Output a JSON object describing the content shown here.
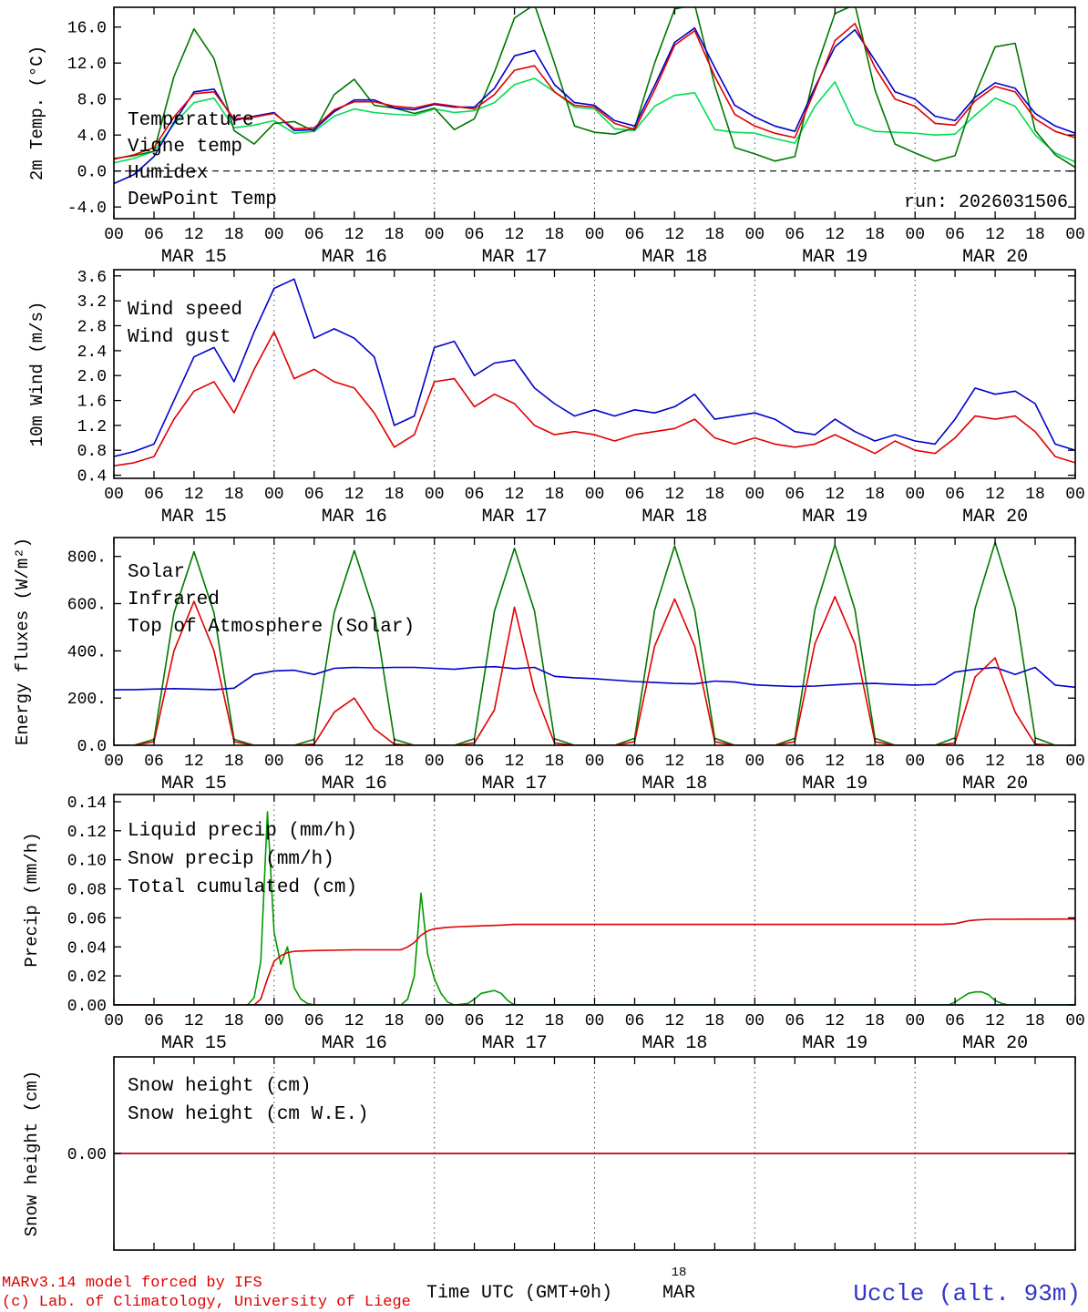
{
  "run_label": "run: 2026031506",
  "x_axis": {
    "total_hours": 144,
    "major_tick_hours": 6,
    "hour_label_cycle": [
      "00",
      "06",
      "12",
      "18"
    ],
    "day_labels": [
      "MAR 15",
      "MAR 16",
      "MAR 17",
      "MAR 18",
      "MAR 19",
      "MAR 20"
    ],
    "day_boundary_hours": [
      24,
      48,
      72,
      96,
      120
    ]
  },
  "footer": {
    "credit_line1": "MARv3.14 model forced by IFS",
    "credit_line2": "(c) Lab. of Climatology, University of Liege",
    "axis_title": "Time UTC (GMT+0h)",
    "axis_day": "18",
    "axis_month": "MAR",
    "station": "Uccle (alt. 93m)"
  },
  "colors": {
    "red": "#e00000",
    "blue": "#0000cc",
    "green_dark": "#007700",
    "green_mid": "#009900",
    "green_bright": "#00dd55",
    "axis": "#000000"
  },
  "chart_data": [
    {
      "id": "temperature",
      "type": "line",
      "ylabel": "2m Temp. (°C)",
      "ylim": [
        -5.3,
        18.2
      ],
      "zero_line": 0,
      "yticks": [
        {
          "v": -4,
          "label": "-4.0"
        },
        {
          "v": 0,
          "label": "0.0"
        },
        {
          "v": 4,
          "label": "4.0"
        },
        {
          "v": 8,
          "label": "8.0"
        },
        {
          "v": 12,
          "label": "12.0"
        },
        {
          "v": 16,
          "label": "16.0"
        }
      ],
      "legend": [
        {
          "label": "Temperature",
          "color": "#e00000"
        },
        {
          "label": "Vigne temp",
          "color": "#007700"
        },
        {
          "label": "Humidex",
          "color": "#0000cc"
        },
        {
          "label": "DewPoint Temp",
          "color": "#00dd55"
        }
      ],
      "series": [
        {
          "name": "DewPoint Temp",
          "color": "#00dd55",
          "step": 3,
          "values": [
            0.9,
            1.4,
            2.2,
            5.2,
            7.6,
            8.1,
            4.8,
            5.1,
            5.6,
            4.2,
            4.4,
            6.1,
            6.9,
            6.5,
            6.3,
            6.2,
            6.9,
            6.5,
            6.7,
            7.6,
            9.6,
            10.3,
            8.8,
            7.1,
            6.9,
            4.7,
            4.5,
            7.2,
            8.4,
            8.7,
            4.6,
            4.3,
            4.2,
            3.6,
            3.1,
            7.2,
            9.9,
            5.2,
            4.4,
            4.3,
            4.2,
            4.0,
            4.1,
            6.2,
            8.1,
            7.2,
            4.0,
            2.0,
            1.0
          ]
        },
        {
          "name": "Vigne temp",
          "color": "#007700",
          "step": 3,
          "values": [
            1.4,
            1.7,
            2.2,
            10.5,
            15.8,
            12.5,
            4.5,
            3.0,
            5.3,
            5.5,
            4.4,
            8.5,
            10.2,
            7.3,
            7.0,
            6.4,
            7.0,
            4.6,
            5.8,
            11.0,
            17.0,
            18.5,
            12.0,
            5.0,
            4.3,
            4.1,
            4.8,
            12.0,
            18.0,
            18.5,
            9.5,
            2.6,
            1.9,
            1.1,
            1.6,
            11.0,
            17.5,
            18.5,
            9.0,
            3.0,
            2.0,
            1.1,
            1.7,
            8.5,
            13.8,
            14.2,
            4.5,
            1.8,
            0.4
          ]
        },
        {
          "name": "Humidex",
          "color": "#0000cc",
          "step": 3,
          "values": [
            -1.4,
            -0.4,
            1.6,
            5.4,
            8.8,
            9.1,
            5.6,
            6.1,
            6.5,
            4.5,
            4.6,
            6.6,
            7.9,
            7.9,
            7.0,
            6.8,
            7.4,
            7.1,
            7.1,
            9.2,
            12.8,
            13.4,
            9.6,
            7.6,
            7.3,
            5.6,
            5.0,
            9.5,
            14.3,
            15.9,
            11.5,
            7.3,
            6.0,
            5.0,
            4.4,
            9.3,
            13.8,
            15.7,
            12.3,
            8.8,
            8.0,
            6.1,
            5.6,
            8.2,
            9.8,
            9.2,
            6.4,
            5.0,
            4.2
          ]
        },
        {
          "name": "Temperature",
          "color": "#e00000",
          "step": 3,
          "values": [
            1.3,
            1.8,
            2.6,
            6.0,
            8.6,
            8.8,
            5.8,
            6.0,
            6.4,
            4.7,
            4.8,
            6.8,
            7.7,
            7.7,
            7.2,
            7.0,
            7.5,
            7.2,
            6.9,
            8.5,
            11.2,
            11.7,
            8.8,
            7.3,
            7.1,
            5.3,
            4.6,
            9.0,
            14.0,
            15.6,
            10.5,
            6.3,
            5.0,
            4.2,
            3.7,
            9.0,
            14.5,
            16.4,
            11.5,
            8.0,
            7.2,
            5.3,
            5.1,
            7.8,
            9.4,
            8.8,
            5.8,
            4.4,
            3.7
          ]
        }
      ]
    },
    {
      "id": "wind",
      "type": "line",
      "ylabel": "10m Wind (m/s)",
      "ylim": [
        0.35,
        3.7
      ],
      "yticks": [
        {
          "v": 0.4,
          "label": "0.4"
        },
        {
          "v": 0.8,
          "label": "0.8"
        },
        {
          "v": 1.2,
          "label": "1.2"
        },
        {
          "v": 1.6,
          "label": "1.6"
        },
        {
          "v": 2.0,
          "label": "2.0"
        },
        {
          "v": 2.4,
          "label": "2.4"
        },
        {
          "v": 2.8,
          "label": "2.8"
        },
        {
          "v": 3.2,
          "label": "3.2"
        },
        {
          "v": 3.6,
          "label": "3.6"
        }
      ],
      "legend": [
        {
          "label": "Wind speed",
          "color": "#e00000"
        },
        {
          "label": "Wind gust",
          "color": "#0000cc"
        }
      ],
      "series": [
        {
          "name": "Wind gust",
          "color": "#0000cc",
          "step": 3,
          "values": [
            0.7,
            0.78,
            0.9,
            1.6,
            2.3,
            2.45,
            1.9,
            2.7,
            3.4,
            3.55,
            2.6,
            2.75,
            2.6,
            2.3,
            1.2,
            1.35,
            2.45,
            2.55,
            2.0,
            2.2,
            2.25,
            1.8,
            1.55,
            1.35,
            1.45,
            1.35,
            1.45,
            1.4,
            1.5,
            1.7,
            1.3,
            1.35,
            1.4,
            1.3,
            1.1,
            1.05,
            1.3,
            1.1,
            0.95,
            1.05,
            0.95,
            0.9,
            1.3,
            1.8,
            1.7,
            1.75,
            1.55,
            0.9,
            0.8
          ]
        },
        {
          "name": "Wind speed",
          "color": "#e00000",
          "step": 3,
          "values": [
            0.55,
            0.6,
            0.7,
            1.3,
            1.75,
            1.9,
            1.4,
            2.1,
            2.7,
            1.95,
            2.1,
            1.9,
            1.8,
            1.4,
            0.85,
            1.05,
            1.9,
            1.95,
            1.5,
            1.7,
            1.55,
            1.2,
            1.05,
            1.1,
            1.05,
            0.95,
            1.05,
            1.1,
            1.15,
            1.3,
            1.0,
            0.9,
            1.0,
            0.9,
            0.85,
            0.9,
            1.05,
            0.9,
            0.75,
            0.95,
            0.8,
            0.75,
            1.0,
            1.35,
            1.3,
            1.35,
            1.1,
            0.7,
            0.6
          ]
        }
      ]
    },
    {
      "id": "energy",
      "type": "line",
      "ylabel": "Energy fluxes (W/m²)",
      "ylim": [
        0,
        880
      ],
      "yticks": [
        {
          "v": 0,
          "label": "0.0"
        },
        {
          "v": 200,
          "label": "200."
        },
        {
          "v": 400,
          "label": "400."
        },
        {
          "v": 600,
          "label": "600."
        },
        {
          "v": 800,
          "label": "800."
        }
      ],
      "legend": [
        {
          "label": "Solar",
          "color": "#e00000"
        },
        {
          "label": "Infrared",
          "color": "#0000cc"
        },
        {
          "label": "Top of Atmosphere (Solar)",
          "color": "#007700"
        }
      ],
      "series": [
        {
          "name": "Top of Atmosphere (Solar)",
          "color": "#007700",
          "step": 3,
          "values": [
            0,
            0,
            25,
            560,
            820,
            560,
            25,
            0,
            0,
            0,
            25,
            563,
            825,
            563,
            25,
            0,
            0,
            0,
            28,
            568,
            835,
            568,
            28,
            0,
            0,
            0,
            30,
            572,
            845,
            572,
            30,
            0,
            0,
            0,
            30,
            575,
            850,
            575,
            30,
            0,
            0,
            0,
            32,
            580,
            860,
            580,
            32,
            0,
            0
          ]
        },
        {
          "name": "Infrared",
          "color": "#0000cc",
          "step": 3,
          "values": [
            235,
            236,
            238,
            240,
            238,
            236,
            242,
            300,
            315,
            318,
            300,
            326,
            330,
            328,
            330,
            330,
            326,
            322,
            330,
            333,
            325,
            330,
            292,
            286,
            282,
            276,
            270,
            266,
            262,
            260,
            272,
            268,
            256,
            252,
            249,
            251,
            256,
            261,
            262,
            258,
            255,
            258,
            310,
            322,
            330,
            300,
            330,
            255,
            246
          ]
        },
        {
          "name": "Solar",
          "color": "#e00000",
          "step": 3,
          "values": [
            0,
            0,
            15,
            400,
            610,
            400,
            15,
            0,
            0,
            0,
            5,
            140,
            200,
            70,
            5,
            0,
            0,
            0,
            10,
            150,
            585,
            230,
            10,
            0,
            0,
            0,
            15,
            420,
            620,
            420,
            15,
            0,
            0,
            0,
            15,
            430,
            630,
            430,
            15,
            0,
            0,
            0,
            10,
            290,
            370,
            140,
            5,
            0,
            0
          ]
        }
      ]
    },
    {
      "id": "precip",
      "type": "line",
      "ylabel": "Precip (mm/h)",
      "ylim": [
        0,
        0.145
      ],
      "yticks": [
        {
          "v": 0.0,
          "label": "0.00"
        },
        {
          "v": 0.02,
          "label": "0.02"
        },
        {
          "v": 0.04,
          "label": "0.04"
        },
        {
          "v": 0.06,
          "label": "0.06"
        },
        {
          "v": 0.08,
          "label": "0.08"
        },
        {
          "v": 0.1,
          "label": "0.10"
        },
        {
          "v": 0.12,
          "label": "0.12"
        },
        {
          "v": 0.14,
          "label": "0.14"
        }
      ],
      "legend": [
        {
          "label": "Liquid precip (mm/h)",
          "color": "#009900"
        },
        {
          "label": "Snow precip (mm/h)",
          "color": "#0000cc"
        },
        {
          "label": "Total cumulated (cm)",
          "color": "#e00000"
        }
      ],
      "series": [
        {
          "name": "Snow precip",
          "color": "#0000cc",
          "x": [
            0,
            144
          ],
          "values": [
            0,
            0
          ]
        },
        {
          "name": "Liquid precip",
          "color": "#009900",
          "x": [
            0,
            20,
            21,
            22,
            23,
            24,
            25,
            26,
            27,
            28,
            29,
            30,
            43,
            44,
            45,
            46,
            47,
            48,
            49,
            50,
            51,
            53,
            54,
            55,
            56,
            57,
            58,
            59,
            60,
            125,
            126,
            127,
            128,
            129,
            130,
            131,
            132,
            133,
            134,
            144
          ],
          "values": [
            0,
            0,
            0.005,
            0.03,
            0.133,
            0.05,
            0.028,
            0.04,
            0.012,
            0.004,
            0.001,
            0,
            0,
            0.004,
            0.02,
            0.077,
            0.035,
            0.018,
            0.008,
            0.002,
            0,
            0.001,
            0.004,
            0.008,
            0.009,
            0.01,
            0.008,
            0.003,
            0,
            0,
            0.002,
            0.005,
            0.008,
            0.009,
            0.009,
            0.007,
            0.003,
            0.001,
            0,
            0
          ]
        },
        {
          "name": "Total cumulated",
          "color": "#e00000",
          "x": [
            0,
            21,
            22,
            23,
            24,
            25,
            26,
            27,
            30,
            36,
            43,
            44,
            45,
            46,
            47,
            48,
            50,
            52,
            55,
            58,
            60,
            96,
            124,
            126,
            127,
            128,
            129,
            131,
            144
          ],
          "values": [
            0,
            0,
            0.004,
            0.018,
            0.03,
            0.034,
            0.036,
            0.037,
            0.0375,
            0.038,
            0.038,
            0.04,
            0.043,
            0.048,
            0.051,
            0.0525,
            0.0535,
            0.054,
            0.0545,
            0.055,
            0.0555,
            0.0555,
            0.0555,
            0.056,
            0.057,
            0.058,
            0.0585,
            0.059,
            0.0592
          ]
        }
      ]
    },
    {
      "id": "snow",
      "type": "line",
      "ylabel": "Snow height (cm)",
      "ylim": [
        -1,
        1
      ],
      "yticks": [
        {
          "v": 0,
          "label": "0.00"
        }
      ],
      "legend": [
        {
          "label": "Snow height (cm)",
          "color": "#e00000"
        },
        {
          "label": "Snow height (cm W.E.)",
          "color": "#0000cc"
        }
      ],
      "series": [
        {
          "name": "Snow height W.E.",
          "color": "#0000cc",
          "x": [
            0,
            144
          ],
          "values": [
            0,
            0
          ]
        },
        {
          "name": "Snow height",
          "color": "#e00000",
          "x": [
            0,
            144
          ],
          "values": [
            0,
            0
          ]
        }
      ]
    }
  ]
}
